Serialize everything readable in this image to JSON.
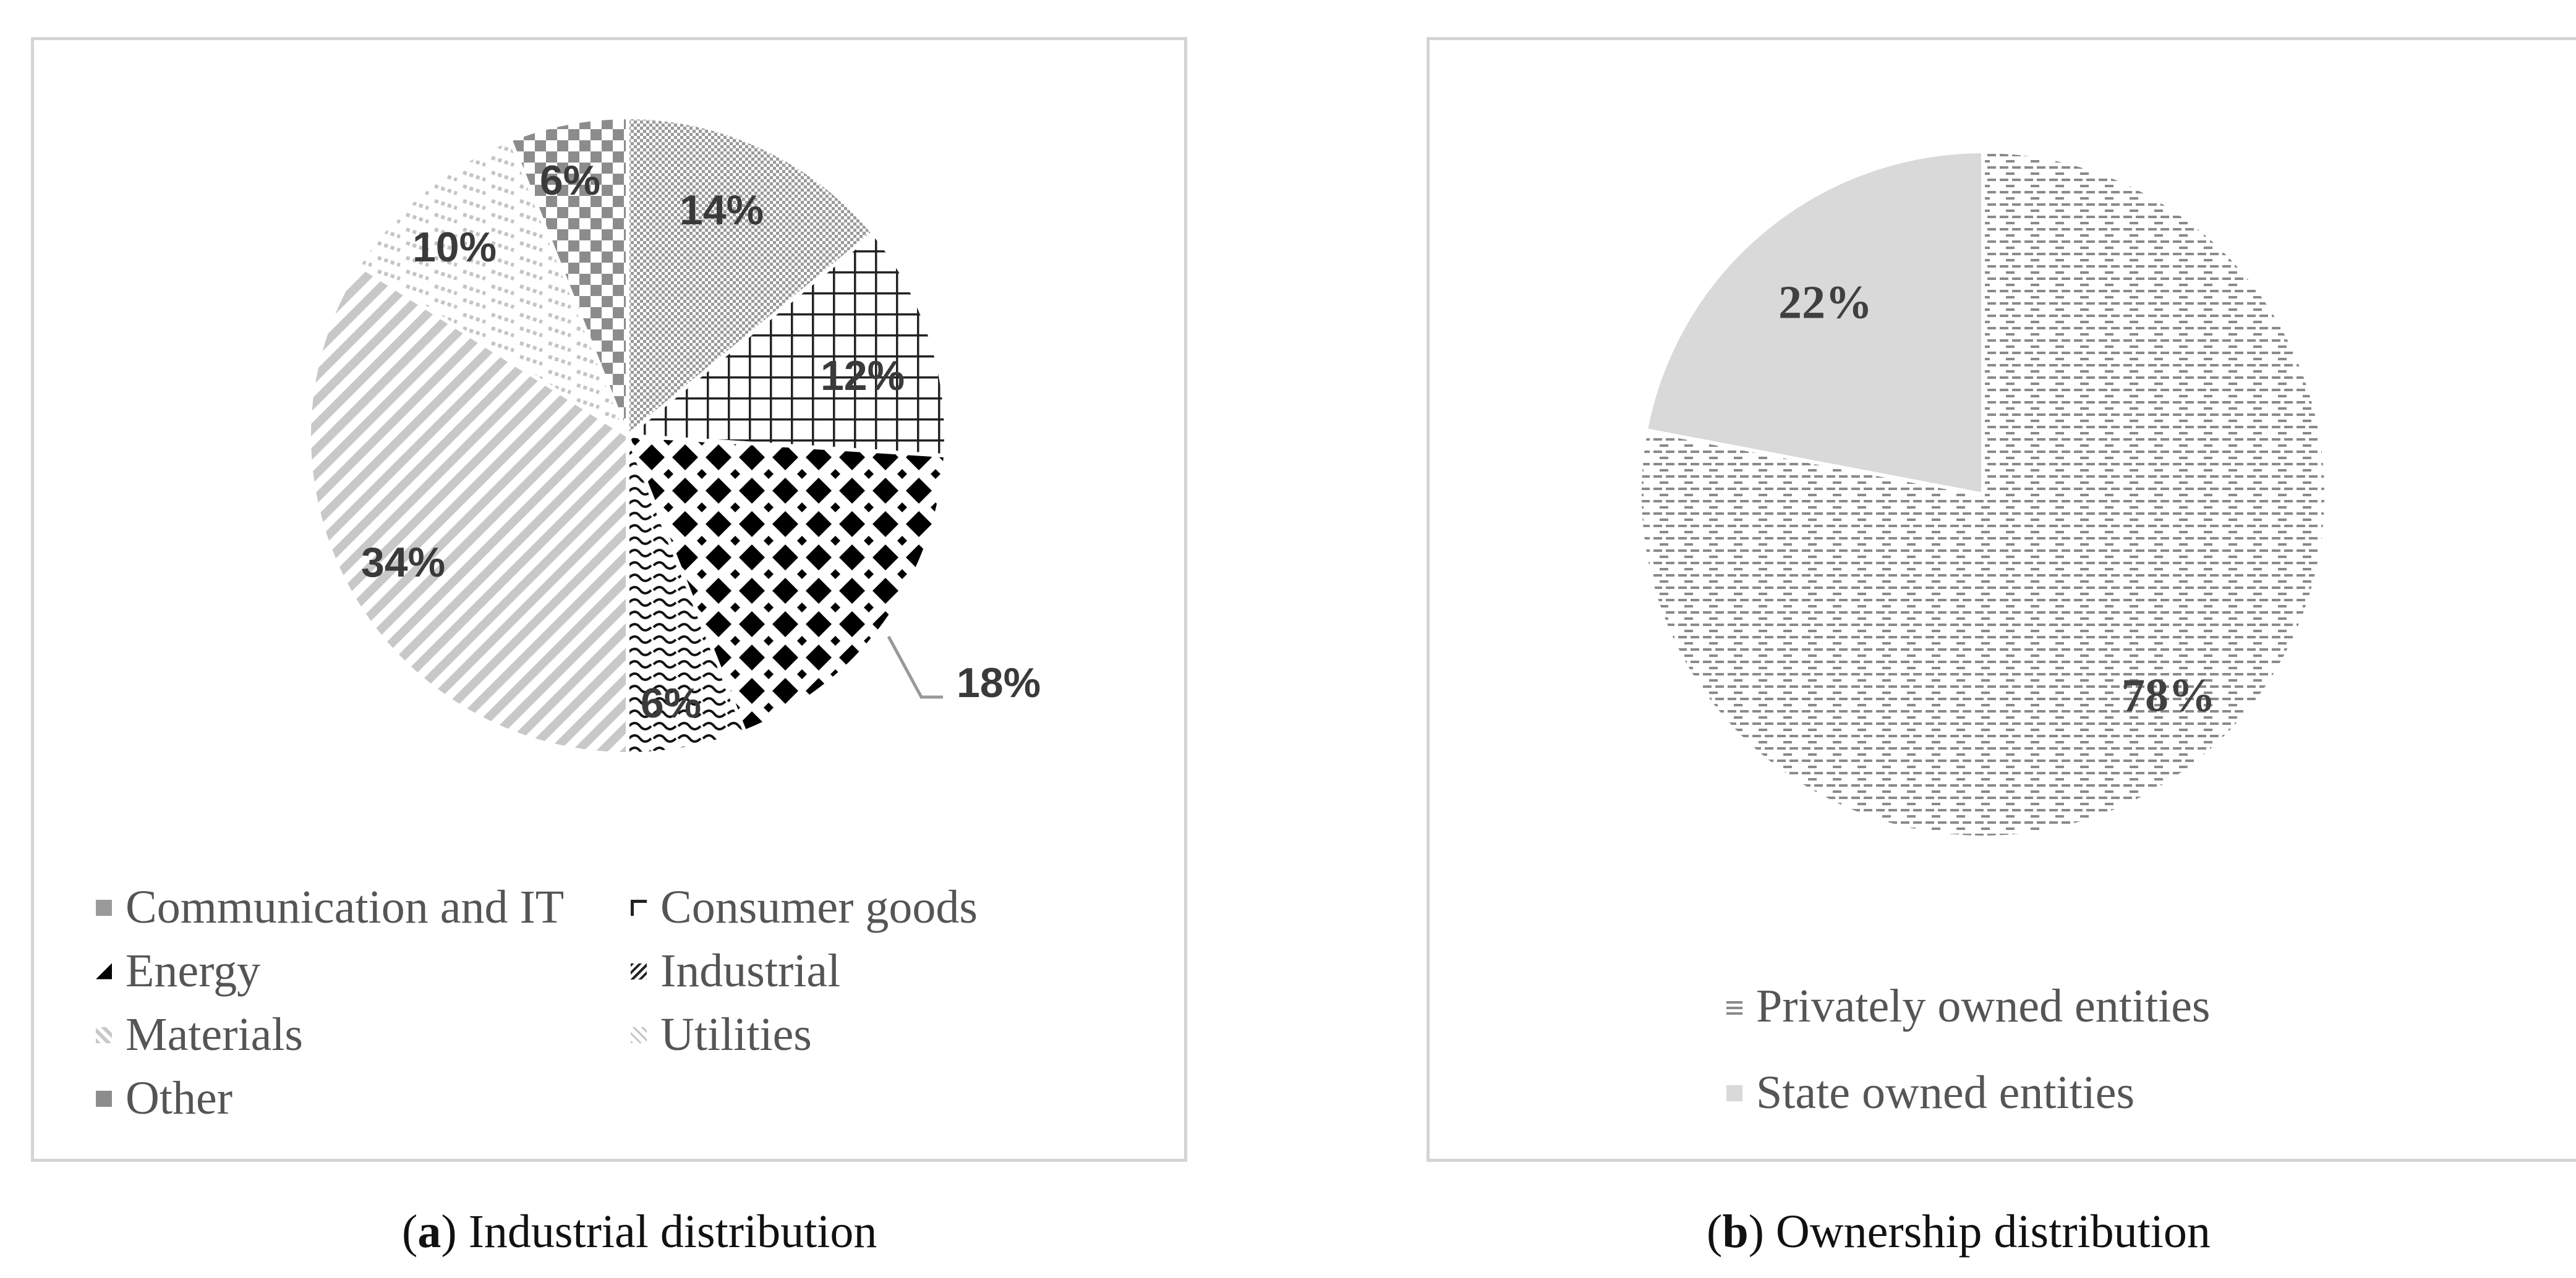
{
  "chart_data": [
    {
      "type": "pie",
      "id": "a",
      "title": "Industrial distribution",
      "caption_letter": "a",
      "slices": [
        {
          "label": "Communication and IT",
          "value": 14,
          "value_label": "14%"
        },
        {
          "label": "Consumer goods",
          "value": 12,
          "value_label": "12%"
        },
        {
          "label": "Energy",
          "value": 18,
          "value_label": "18%"
        },
        {
          "label": "Industrial",
          "value": 6,
          "value_label": "6%"
        },
        {
          "label": "Materials",
          "value": 34,
          "value_label": "34%"
        },
        {
          "label": "Utilities",
          "value": 10,
          "value_label": "10%"
        },
        {
          "label": "Other",
          "value": 6,
          "value_label": "6%"
        }
      ],
      "legend_position": "bottom"
    },
    {
      "type": "pie",
      "id": "b",
      "title": "Ownership distribution",
      "caption_letter": "b",
      "slices": [
        {
          "label": "Privately owned entities",
          "value": 78,
          "value_label": "78%"
        },
        {
          "label": "State owned entities",
          "value": 22,
          "value_label": "22%"
        }
      ],
      "legend_position": "bottom"
    }
  ],
  "colors": {
    "border": "#d4d4d4",
    "text": "#555555",
    "light_gray": "#d9d9d9",
    "dark_gray": "#404040"
  }
}
